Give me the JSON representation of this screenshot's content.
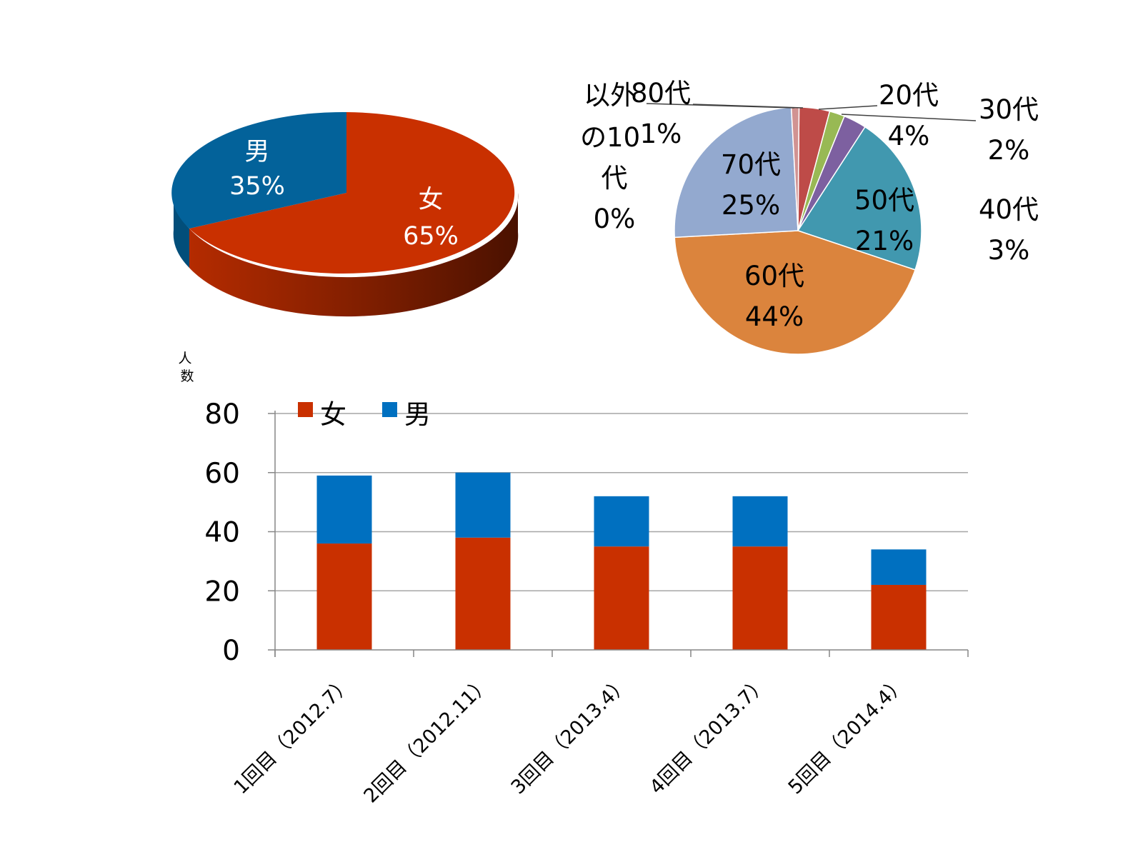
{
  "chart_data": [
    {
      "type": "pie",
      "style": "3d",
      "slices": [
        {
          "label": "女",
          "value": 65,
          "value_label": "65%",
          "color": "#C93000"
        },
        {
          "label": "男",
          "value": 35,
          "value_label": "35%",
          "color": "#03629A"
        }
      ]
    },
    {
      "type": "pie",
      "slices": [
        {
          "label": "以外の10代",
          "value": 0,
          "value_label": "0%",
          "color": "#4A7EBB"
        },
        {
          "label": "20代",
          "value": 4,
          "value_label": "4%",
          "color": "#BE4B48"
        },
        {
          "label": "30代",
          "value": 2,
          "value_label": "2%",
          "color": "#98B954"
        },
        {
          "label": "40代",
          "value": 3,
          "value_label": "3%",
          "color": "#7D60A0"
        },
        {
          "label": "50代",
          "value": 21,
          "value_label": "21%",
          "color": "#4198AF"
        },
        {
          "label": "60代",
          "value": 44,
          "value_label": "44%",
          "color": "#DB843D"
        },
        {
          "label": "70代",
          "value": 25,
          "value_label": "25%",
          "color": "#93A9CF"
        },
        {
          "label": "80代",
          "value": 1,
          "value_label": "1%",
          "color": "#D19392"
        }
      ]
    },
    {
      "type": "bar",
      "stacked": true,
      "ylabel": "人数",
      "categories": [
        "1回目（2012.7）",
        "2回目（2012.11）",
        "3回目（2013.4）",
        "4回目（2013.7）",
        "5回目（2014.4）"
      ],
      "series": [
        {
          "name": "女",
          "values": [
            36,
            38,
            35,
            35,
            22
          ],
          "color": "#C93000"
        },
        {
          "name": "男",
          "values": [
            23,
            22,
            17,
            17,
            12
          ],
          "color": "#0070C0"
        }
      ],
      "ylim": [
        0,
        80
      ],
      "yticks": [
        "0",
        "20",
        "40",
        "60",
        "80"
      ],
      "grid": true,
      "legend": "top-left"
    }
  ]
}
